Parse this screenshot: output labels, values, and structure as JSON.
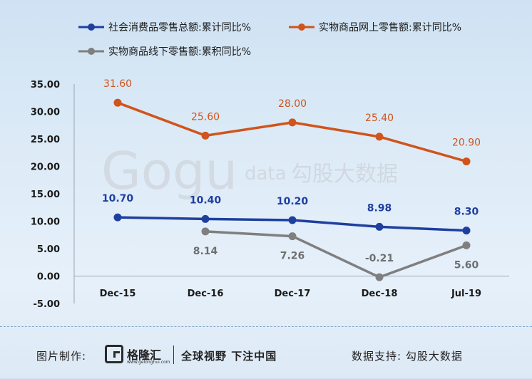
{
  "chart_data": {
    "type": "line",
    "categories": [
      "Dec-15",
      "Dec-16",
      "Dec-17",
      "Dec-18",
      "Jul-19"
    ],
    "series": [
      {
        "name": "社会消费品零售总额:累计同比%",
        "color": "#1f3f9f",
        "values": [
          10.7,
          10.4,
          10.2,
          8.98,
          8.3
        ],
        "labels": [
          "10.70",
          "10.40",
          "10.20",
          "8.98",
          "8.30"
        ]
      },
      {
        "name": "实物商品网上零售额:累计同比%",
        "color": "#d0541c",
        "values": [
          31.6,
          25.6,
          28.0,
          25.4,
          20.9
        ],
        "labels": [
          "31.60",
          "25.60",
          "28.00",
          "25.40",
          "20.90"
        ]
      },
      {
        "name": "实物商品线下零售额:累积同比%",
        "color": "#7f7f7f",
        "values": [
          null,
          8.14,
          7.26,
          -0.21,
          5.6
        ],
        "labels": [
          "",
          "8.14",
          "7.26",
          "-0.21",
          "5.60"
        ]
      }
    ],
    "yticks": [
      "35.00",
      "30.00",
      "25.00",
      "20.00",
      "15.00",
      "10.00",
      "5.00",
      "0.00",
      "-5.00"
    ],
    "ylim": [
      -5,
      35
    ],
    "legend_position": "top",
    "grid": false,
    "watermark": {
      "brand": "Gogu",
      "suffix": "data",
      "name": "勾股大数据"
    }
  },
  "footer": {
    "credit_label": "图片制作:",
    "logo_name": "格隆汇",
    "logo_url": "www.gelonghui.com",
    "slogan": "全球视野 下注中国",
    "support": "数据支持:  勾股大数据"
  }
}
